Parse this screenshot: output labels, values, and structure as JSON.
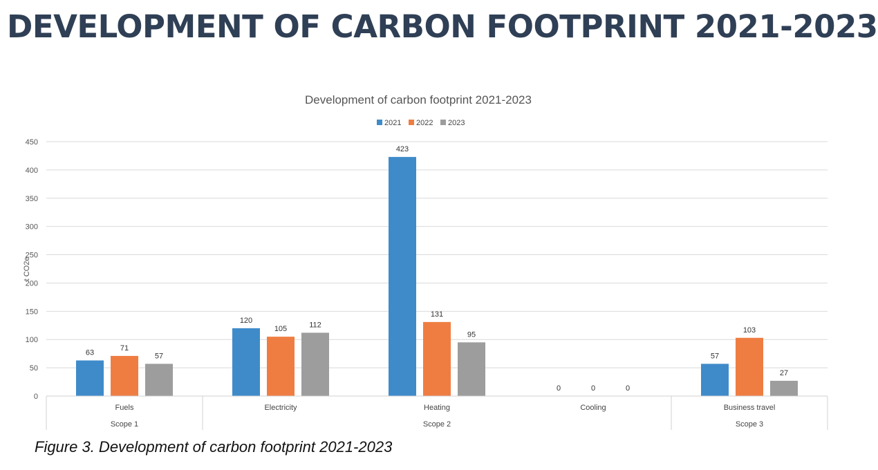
{
  "page_title": "DEVELOPMENT OF CARBON FOOTPRINT 2021-2023",
  "caption": "Figure 3. Development of carbon footprint 2021-2023",
  "chart_data": {
    "type": "bar",
    "title": "Development of carbon footprint 2021-2023",
    "xlabel": "",
    "ylabel": "t CO2e",
    "ylim": [
      0,
      450
    ],
    "yticks": [
      0,
      50,
      100,
      150,
      200,
      250,
      300,
      350,
      400,
      450
    ],
    "grid": true,
    "legend_position": "top-center",
    "categories": [
      "Fuels",
      "Electricity",
      "Heating",
      "Cooling",
      "Business travel"
    ],
    "groups": [
      {
        "label": "Scope 1",
        "categories": [
          "Fuels"
        ]
      },
      {
        "label": "Scope 2",
        "categories": [
          "Electricity",
          "Heating",
          "Cooling"
        ]
      },
      {
        "label": "Scope 3",
        "categories": [
          "Business travel"
        ]
      }
    ],
    "series": [
      {
        "name": "2021",
        "color": "#3f8bca",
        "values": [
          63,
          120,
          423,
          0,
          57
        ]
      },
      {
        "name": "2022",
        "color": "#ef7d42",
        "values": [
          71,
          105,
          131,
          0,
          103
        ]
      },
      {
        "name": "2023",
        "color": "#9c9d9c",
        "values": [
          57,
          112,
          95,
          0,
          27
        ]
      }
    ]
  }
}
